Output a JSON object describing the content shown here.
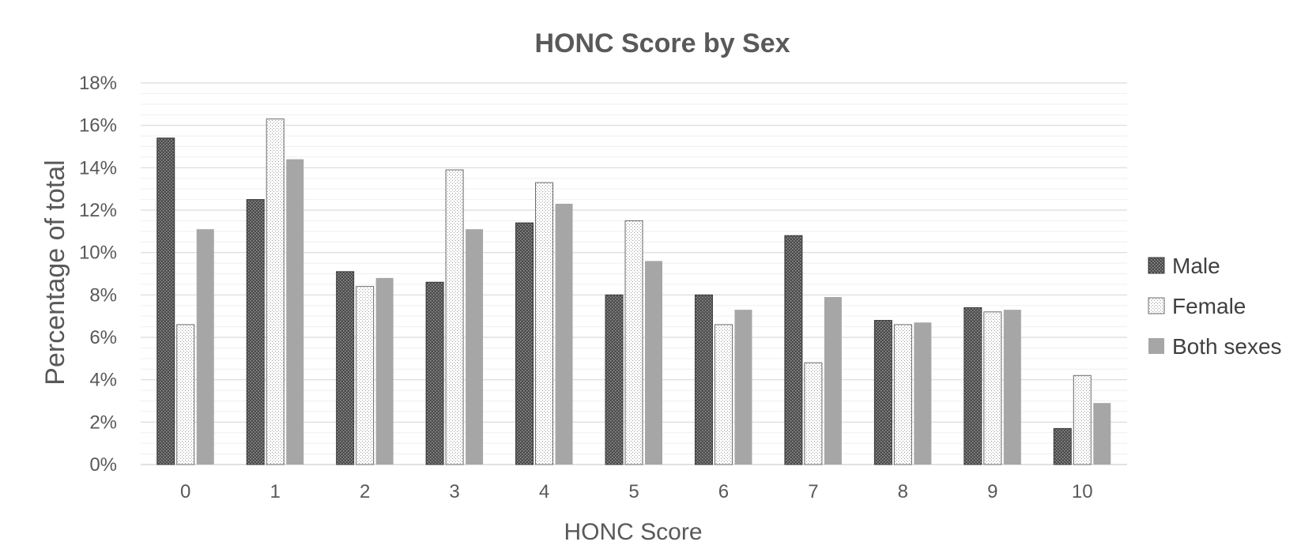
{
  "chart_data": {
    "type": "bar",
    "title": "HONC Score by Sex",
    "xlabel": "HONC Score",
    "ylabel": "Percentage of total",
    "categories": [
      "0",
      "1",
      "2",
      "3",
      "4",
      "5",
      "6",
      "7",
      "8",
      "9",
      "10"
    ],
    "ylim": [
      0,
      18
    ],
    "yticks": [
      "0%",
      "2%",
      "4%",
      "6%",
      "8%",
      "10%",
      "12%",
      "14%",
      "16%",
      "18%"
    ],
    "grid": true,
    "legend_position": "right",
    "series": [
      {
        "name": "Male",
        "color": "#595959",
        "pattern": "crosshatch-dark",
        "values": [
          15.4,
          12.5,
          9.1,
          8.6,
          11.4,
          8.0,
          8.0,
          10.8,
          6.8,
          7.4,
          1.7
        ]
      },
      {
        "name": "Female",
        "color": "#ffffff",
        "pattern": "dotted-light",
        "values": [
          6.6,
          16.3,
          8.4,
          13.9,
          13.3,
          11.5,
          6.6,
          4.8,
          6.6,
          7.2,
          4.2
        ]
      },
      {
        "name": "Both sexes",
        "color": "#a6a6a6",
        "pattern": "solid-gray",
        "values": [
          11.1,
          14.4,
          8.8,
          11.1,
          12.3,
          9.6,
          7.3,
          7.9,
          6.7,
          7.3,
          2.9
        ]
      }
    ]
  }
}
